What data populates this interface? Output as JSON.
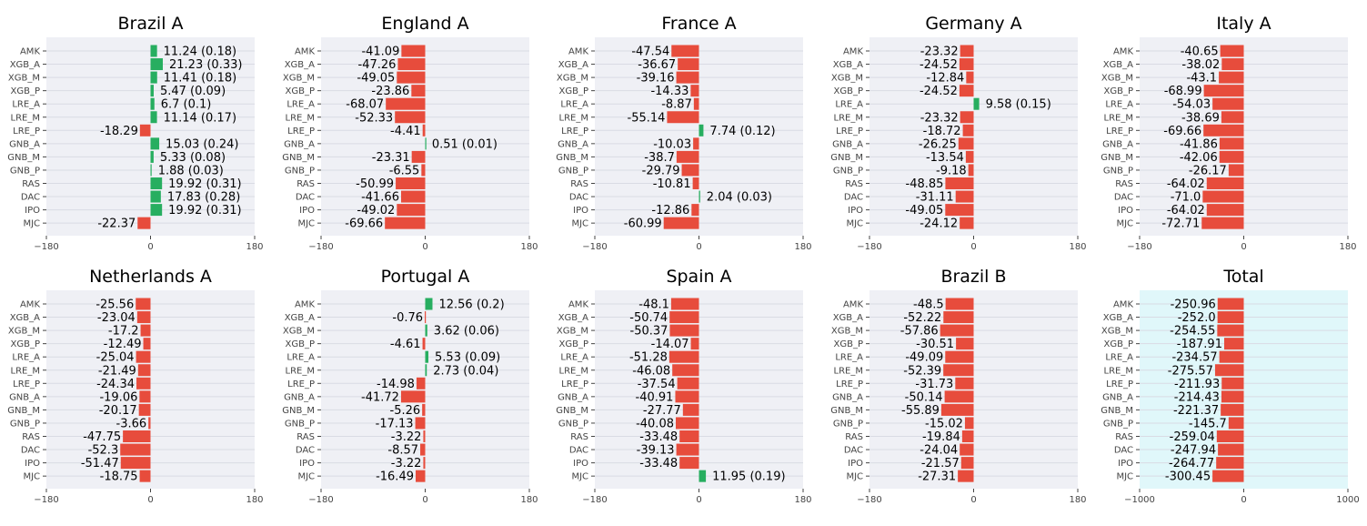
{
  "colors": {
    "positive": "#27ae60",
    "negative": "#e74c3c",
    "panel_bg": "#eff0f5",
    "total_bg": "#e0f7fa",
    "grid": "#d9dbe4"
  },
  "chart_data": [
    {
      "type": "bar",
      "orientation": "horizontal",
      "title": "Brazil A",
      "xlim": [
        -180,
        180
      ],
      "xticks": [
        "−180",
        "0",
        "180"
      ],
      "categories": [
        "AMK",
        "XGB_A",
        "XGB_M",
        "XGB_P",
        "LRE_A",
        "LRE_M",
        "LRE_P",
        "GNB_A",
        "GNB_M",
        "GNB_P",
        "RAS",
        "DAC",
        "IPO",
        "MJC"
      ],
      "values": [
        11.24,
        21.23,
        11.41,
        5.47,
        6.7,
        11.14,
        -18.29,
        15.03,
        5.33,
        1.88,
        19.92,
        17.83,
        19.92,
        -22.37
      ],
      "labels": [
        "11.24 (0.18)",
        "21.23 (0.33)",
        "11.41 (0.18)",
        "5.47 (0.09)",
        "6.7 (0.1)",
        "11.14 (0.17)",
        "-18.29",
        "15.03 (0.24)",
        "5.33 (0.08)",
        "1.88 (0.03)",
        "19.92 (0.31)",
        "17.83 (0.28)",
        "19.92 (0.31)",
        "-22.37"
      ]
    },
    {
      "type": "bar",
      "orientation": "horizontal",
      "title": "England A",
      "xlim": [
        -180,
        180
      ],
      "xticks": [
        "−180",
        "0",
        "180"
      ],
      "categories": [
        "AMK",
        "XGB_A",
        "XGB_M",
        "XGB_P",
        "LRE_A",
        "LRE_M",
        "LRE_P",
        "GNB_A",
        "GNB_M",
        "GNB_P",
        "RAS",
        "DAC",
        "IPO",
        "MJC"
      ],
      "values": [
        -41.09,
        -47.26,
        -49.05,
        -23.86,
        -68.07,
        -52.33,
        -4.41,
        0.51,
        -23.31,
        -6.55,
        -50.99,
        -41.66,
        -49.02,
        -69.66
      ],
      "labels": [
        "-41.09",
        "-47.26",
        "-49.05",
        "-23.86",
        "-68.07",
        "-52.33",
        "-4.41",
        "0.51 (0.01)",
        "-23.31",
        "-6.55",
        "-50.99",
        "-41.66",
        "-49.02",
        "-69.66"
      ]
    },
    {
      "type": "bar",
      "orientation": "horizontal",
      "title": "France A",
      "xlim": [
        -180,
        180
      ],
      "xticks": [
        "−180",
        "0",
        "180"
      ],
      "categories": [
        "AMK",
        "XGB_A",
        "XGB_M",
        "XGB_P",
        "LRE_A",
        "LRE_M",
        "LRE_P",
        "GNB_A",
        "GNB_M",
        "GNB_P",
        "RAS",
        "DAC",
        "IPO",
        "MJC"
      ],
      "values": [
        -47.54,
        -36.67,
        -39.16,
        -14.33,
        -8.87,
        -55.14,
        7.74,
        -10.03,
        -38.7,
        -29.79,
        -10.81,
        2.04,
        -12.86,
        -60.99
      ],
      "labels": [
        "-47.54",
        "-36.67",
        "-39.16",
        "-14.33",
        "-8.87",
        "-55.14",
        "7.74 (0.12)",
        "-10.03",
        "-38.7",
        "-29.79",
        "-10.81",
        "2.04 (0.03)",
        "-12.86",
        "-60.99"
      ]
    },
    {
      "type": "bar",
      "orientation": "horizontal",
      "title": "Germany A",
      "xlim": [
        -180,
        180
      ],
      "xticks": [
        "−180",
        "0",
        "180"
      ],
      "categories": [
        "AMK",
        "XGB_A",
        "XGB_M",
        "XGB_P",
        "LRE_A",
        "LRE_M",
        "LRE_P",
        "GNB_A",
        "GNB_M",
        "GNB_P",
        "RAS",
        "DAC",
        "IPO",
        "MJC"
      ],
      "values": [
        -23.32,
        -24.52,
        -12.84,
        -24.52,
        9.58,
        -23.32,
        -18.72,
        -26.25,
        -13.54,
        -9.18,
        -48.85,
        -31.11,
        -49.05,
        -24.12
      ],
      "labels": [
        "-23.32",
        "-24.52",
        "-12.84",
        "-24.52",
        "9.58 (0.15)",
        "-23.32",
        "-18.72",
        "-26.25",
        "-13.54",
        "-9.18",
        "-48.85",
        "-31.11",
        "-49.05",
        "-24.12"
      ]
    },
    {
      "type": "bar",
      "orientation": "horizontal",
      "title": "Italy A",
      "xlim": [
        -180,
        180
      ],
      "xticks": [
        "−180",
        "0",
        "180"
      ],
      "categories": [
        "AMK",
        "XGB_A",
        "XGB_M",
        "XGB_P",
        "LRE_A",
        "LRE_M",
        "LRE_P",
        "GNB_A",
        "GNB_M",
        "GNB_P",
        "RAS",
        "DAC",
        "IPO",
        "MJC"
      ],
      "values": [
        -40.65,
        -38.02,
        -43.1,
        -68.99,
        -54.03,
        -38.69,
        -69.66,
        -41.86,
        -42.06,
        -26.17,
        -64.02,
        -71.0,
        -64.02,
        -72.71
      ],
      "labels": [
        "-40.65",
        "-38.02",
        "-43.1",
        "-68.99",
        "-54.03",
        "-38.69",
        "-69.66",
        "-41.86",
        "-42.06",
        "-26.17",
        "-64.02",
        "-71.0",
        "-64.02",
        "-72.71"
      ]
    },
    {
      "type": "bar",
      "orientation": "horizontal",
      "title": "Netherlands A",
      "xlim": [
        -180,
        180
      ],
      "xticks": [
        "−180",
        "0",
        "180"
      ],
      "categories": [
        "AMK",
        "XGB_A",
        "XGB_M",
        "XGB_P",
        "LRE_A",
        "LRE_M",
        "LRE_P",
        "GNB_A",
        "GNB_M",
        "GNB_P",
        "RAS",
        "DAC",
        "IPO",
        "MJC"
      ],
      "values": [
        -25.56,
        -23.04,
        -17.2,
        -12.49,
        -25.04,
        -21.49,
        -24.34,
        -19.06,
        -20.17,
        -3.66,
        -47.75,
        -52.3,
        -51.47,
        -18.75
      ],
      "labels": [
        "-25.56",
        "-23.04",
        "-17.2",
        "-12.49",
        "-25.04",
        "-21.49",
        "-24.34",
        "-19.06",
        "-20.17",
        "-3.66",
        "-47.75",
        "-52.3",
        "-51.47",
        "-18.75"
      ]
    },
    {
      "type": "bar",
      "orientation": "horizontal",
      "title": "Portugal A",
      "xlim": [
        -180,
        180
      ],
      "xticks": [
        "−180",
        "0",
        "180"
      ],
      "categories": [
        "AMK",
        "XGB_A",
        "XGB_M",
        "XGB_P",
        "LRE_A",
        "LRE_M",
        "LRE_P",
        "GNB_A",
        "GNB_M",
        "GNB_P",
        "RAS",
        "DAC",
        "IPO",
        "MJC"
      ],
      "values": [
        12.56,
        -0.76,
        3.62,
        -4.61,
        5.53,
        2.73,
        -14.98,
        -41.72,
        -5.26,
        -17.13,
        -3.22,
        -8.57,
        -3.22,
        -16.49
      ],
      "labels": [
        "12.56 (0.2)",
        "-0.76",
        "3.62 (0.06)",
        "-4.61",
        "5.53 (0.09)",
        "2.73 (0.04)",
        "-14.98",
        "-41.72",
        "-5.26",
        "-17.13",
        "-3.22",
        "-8.57",
        "-3.22",
        "-16.49"
      ]
    },
    {
      "type": "bar",
      "orientation": "horizontal",
      "title": "Spain A",
      "xlim": [
        -180,
        180
      ],
      "xticks": [
        "−180",
        "0",
        "180"
      ],
      "categories": [
        "AMK",
        "XGB_A",
        "XGB_M",
        "XGB_P",
        "LRE_A",
        "LRE_M",
        "LRE_P",
        "GNB_A",
        "GNB_M",
        "GNB_P",
        "RAS",
        "DAC",
        "IPO",
        "MJC"
      ],
      "values": [
        -48.1,
        -50.74,
        -50.37,
        -14.07,
        -51.28,
        -46.08,
        -37.54,
        -40.91,
        -27.77,
        -40.08,
        -33.48,
        -39.13,
        -33.48,
        11.95
      ],
      "labels": [
        "-48.1",
        "-50.74",
        "-50.37",
        "-14.07",
        "-51.28",
        "-46.08",
        "-37.54",
        "-40.91",
        "-27.77",
        "-40.08",
        "-33.48",
        "-39.13",
        "-33.48",
        "11.95 (0.19)"
      ]
    },
    {
      "type": "bar",
      "orientation": "horizontal",
      "title": "Brazil B",
      "xlim": [
        -180,
        180
      ],
      "xticks": [
        "−180",
        "0",
        "180"
      ],
      "categories": [
        "AMK",
        "XGB_A",
        "XGB_M",
        "XGB_P",
        "LRE_A",
        "LRE_M",
        "LRE_P",
        "GNB_A",
        "GNB_M",
        "GNB_P",
        "RAS",
        "DAC",
        "IPO",
        "MJC"
      ],
      "values": [
        -48.5,
        -52.22,
        -57.86,
        -30.51,
        -49.09,
        -52.39,
        -31.73,
        -50.14,
        -55.89,
        -15.02,
        -19.84,
        -24.04,
        -21.57,
        -27.31
      ],
      "labels": [
        "-48.5",
        "-52.22",
        "-57.86",
        "-30.51",
        "-49.09",
        "-52.39",
        "-31.73",
        "-50.14",
        "-55.89",
        "-15.02",
        "-19.84",
        "-24.04",
        "-21.57",
        "-27.31"
      ]
    },
    {
      "type": "bar",
      "orientation": "horizontal",
      "title": "Total",
      "xlim": [
        -1000,
        1000
      ],
      "xticks": [
        "−1000",
        "0",
        "1000"
      ],
      "highlight_background": true,
      "categories": [
        "AMK",
        "XGB_A",
        "XGB_M",
        "XGB_P",
        "LRE_A",
        "LRE_M",
        "LRE_P",
        "GNB_A",
        "GNB_M",
        "GNB_P",
        "RAS",
        "DAC",
        "IPO",
        "MJC"
      ],
      "values": [
        -250.96,
        -252.0,
        -254.55,
        -187.91,
        -234.57,
        -275.57,
        -211.93,
        -214.43,
        -221.37,
        -145.7,
        -259.04,
        -247.94,
        -264.77,
        -300.45
      ],
      "labels": [
        "-250.96",
        "-252.0",
        "-254.55",
        "-187.91",
        "-234.57",
        "-275.57",
        "-211.93",
        "-214.43",
        "-221.37",
        "-145.7",
        "-259.04",
        "-247.94",
        "-264.77",
        "-300.45"
      ]
    }
  ]
}
